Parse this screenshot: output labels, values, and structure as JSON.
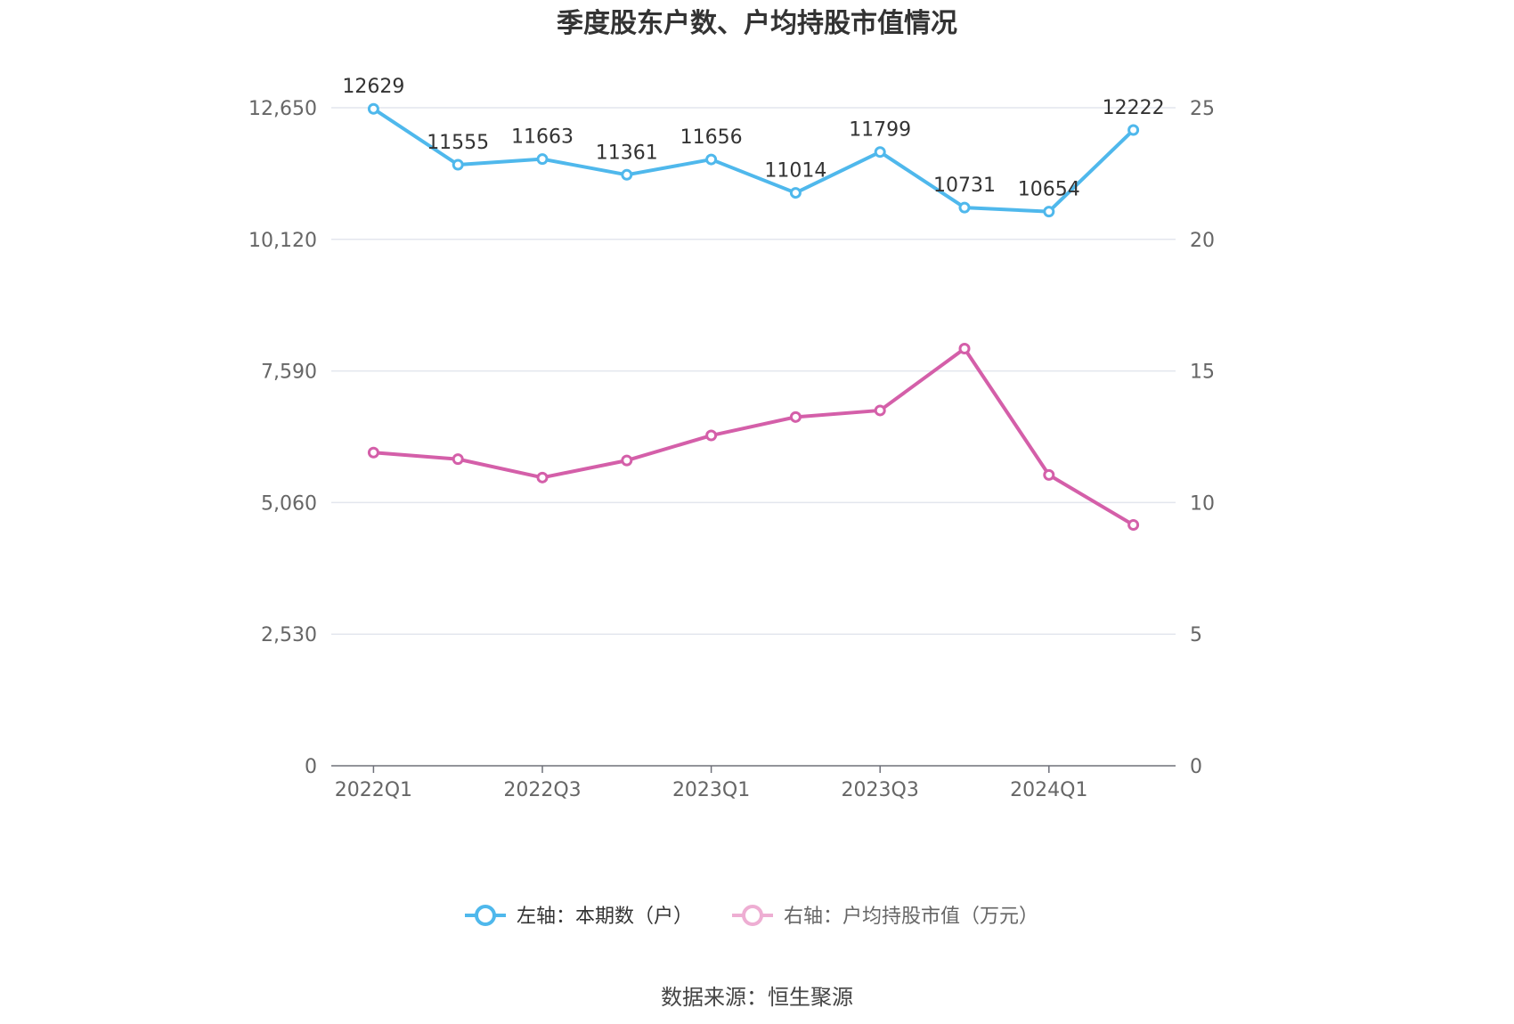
{
  "chart_data": {
    "type": "line",
    "title": "季度股东户数、户均持股市值情况",
    "categories": [
      "2022Q1",
      "2022Q2",
      "2022Q3",
      "2022Q4",
      "2023Q1",
      "2023Q2",
      "2023Q3",
      "2023Q4",
      "2024Q1",
      "2024Q2"
    ],
    "x_tick_labels": [
      "2022Q1",
      "2022Q3",
      "2023Q1",
      "2023Q3",
      "2024Q1"
    ],
    "left_axis": {
      "ylim": [
        0,
        12650
      ],
      "ticks": [
        "0",
        "2,530",
        "5,060",
        "7,590",
        "10,120",
        "12,650"
      ]
    },
    "right_axis": {
      "ylim": [
        0,
        25
      ],
      "ticks": [
        "0",
        "5",
        "10",
        "15",
        "20",
        "25"
      ]
    },
    "series": [
      {
        "name": "左轴：本期数（户）",
        "axis": "left",
        "color": "#4fb8ec",
        "values": [
          12629,
          11555,
          11663,
          11361,
          11656,
          11014,
          11799,
          10731,
          10654,
          12222
        ],
        "labels": [
          "12629",
          "11555",
          "11663",
          "11361",
          "11656",
          "11014",
          "11799",
          "10731",
          "10654",
          "12222"
        ]
      },
      {
        "name": "右轴：户均持股市值（万元）",
        "axis": "right",
        "color": "#d45fa9",
        "values": [
          11.9,
          11.65,
          10.95,
          11.6,
          12.55,
          13.25,
          13.5,
          15.85,
          11.05,
          9.15
        ]
      }
    ],
    "grid": true,
    "legend": "bottom"
  },
  "legend": {
    "left_label": "左轴：本期数（户）",
    "right_label": "右轴：户均持股市值（万元）"
  },
  "source": "数据来源：恒生聚源"
}
